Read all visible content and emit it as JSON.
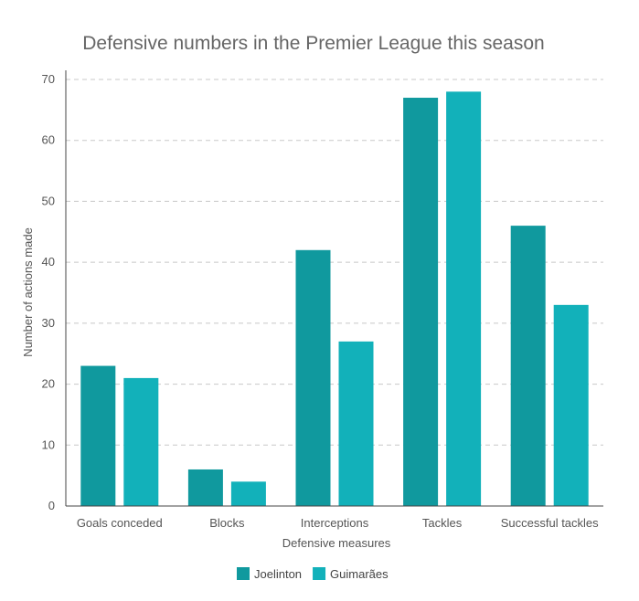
{
  "chart_data": {
    "type": "bar",
    "title": "Defensive numbers in the Premier League this season",
    "xlabel": "Defensive measures",
    "ylabel": "Number of actions made",
    "categories": [
      "Goals conceded",
      "Blocks",
      "Interceptions",
      "Tackles",
      "Successful tackles"
    ],
    "series": [
      {
        "name": "Joelinton",
        "values": [
          23,
          6,
          42,
          67,
          46
        ],
        "color": "#10999E"
      },
      {
        "name": "Guimarães",
        "values": [
          21,
          4,
          27,
          68,
          33
        ],
        "color": "#12B1BA"
      }
    ],
    "ylim": [
      0,
      70
    ],
    "yticks": [
      0,
      10,
      20,
      30,
      40,
      50,
      60,
      70
    ],
    "grid": true,
    "legend_position": "bottom"
  }
}
